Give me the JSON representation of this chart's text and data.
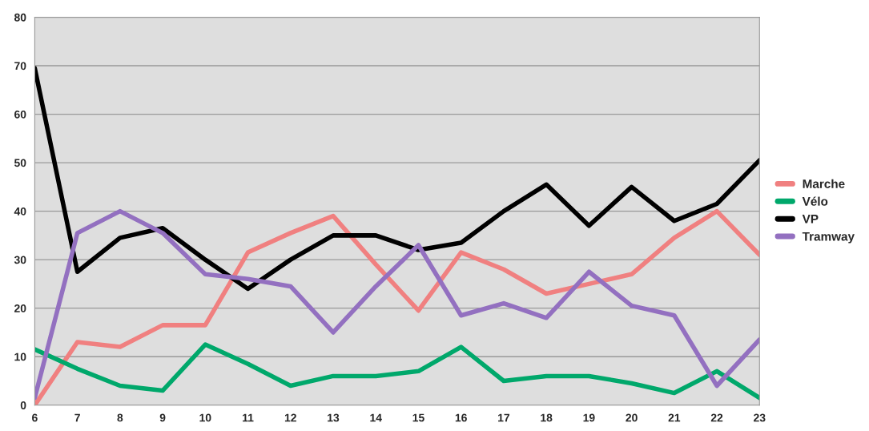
{
  "chart_data": {
    "type": "line",
    "x": [
      6,
      7,
      8,
      9,
      10,
      11,
      12,
      13,
      14,
      15,
      16,
      17,
      18,
      19,
      20,
      21,
      22,
      23
    ],
    "series": [
      {
        "name": "Marche",
        "color": "#f08080",
        "values": [
          0,
          13,
          12,
          16.5,
          16.5,
          31.5,
          35.5,
          39,
          29,
          19.5,
          31.5,
          28,
          23,
          25,
          27,
          34.5,
          40,
          31
        ]
      },
      {
        "name": "Vélo",
        "color": "#00a86b",
        "values": [
          11.5,
          7.5,
          4,
          3,
          12.5,
          8.5,
          4,
          6,
          6,
          7,
          12,
          5,
          6,
          6,
          4.5,
          2.5,
          7,
          1.5
        ]
      },
      {
        "name": "VP",
        "color": "#000000",
        "values": [
          69.5,
          27.5,
          34.5,
          36.5,
          30,
          24,
          30,
          35,
          35,
          32,
          33.5,
          40,
          45.5,
          37,
          45,
          38,
          41.5,
          50.5
        ]
      },
      {
        "name": "Tramway",
        "color": "#9370c0",
        "values": [
          1.5,
          35.5,
          40,
          35.5,
          27,
          26,
          24.5,
          15,
          24.5,
          33,
          18.5,
          21,
          18,
          27.5,
          20.5,
          18.5,
          4,
          13.5
        ]
      }
    ],
    "xlim": [
      6,
      23
    ],
    "xticks": [
      6,
      7,
      8,
      9,
      10,
      11,
      12,
      13,
      14,
      15,
      16,
      17,
      18,
      19,
      20,
      21,
      22,
      23
    ],
    "ylim": [
      0,
      80
    ],
    "yticks": [
      0,
      10,
      20,
      30,
      40,
      50,
      60,
      70,
      80
    ],
    "grid": "y",
    "legend": "right",
    "marker": "none",
    "line_style": "solid"
  }
}
